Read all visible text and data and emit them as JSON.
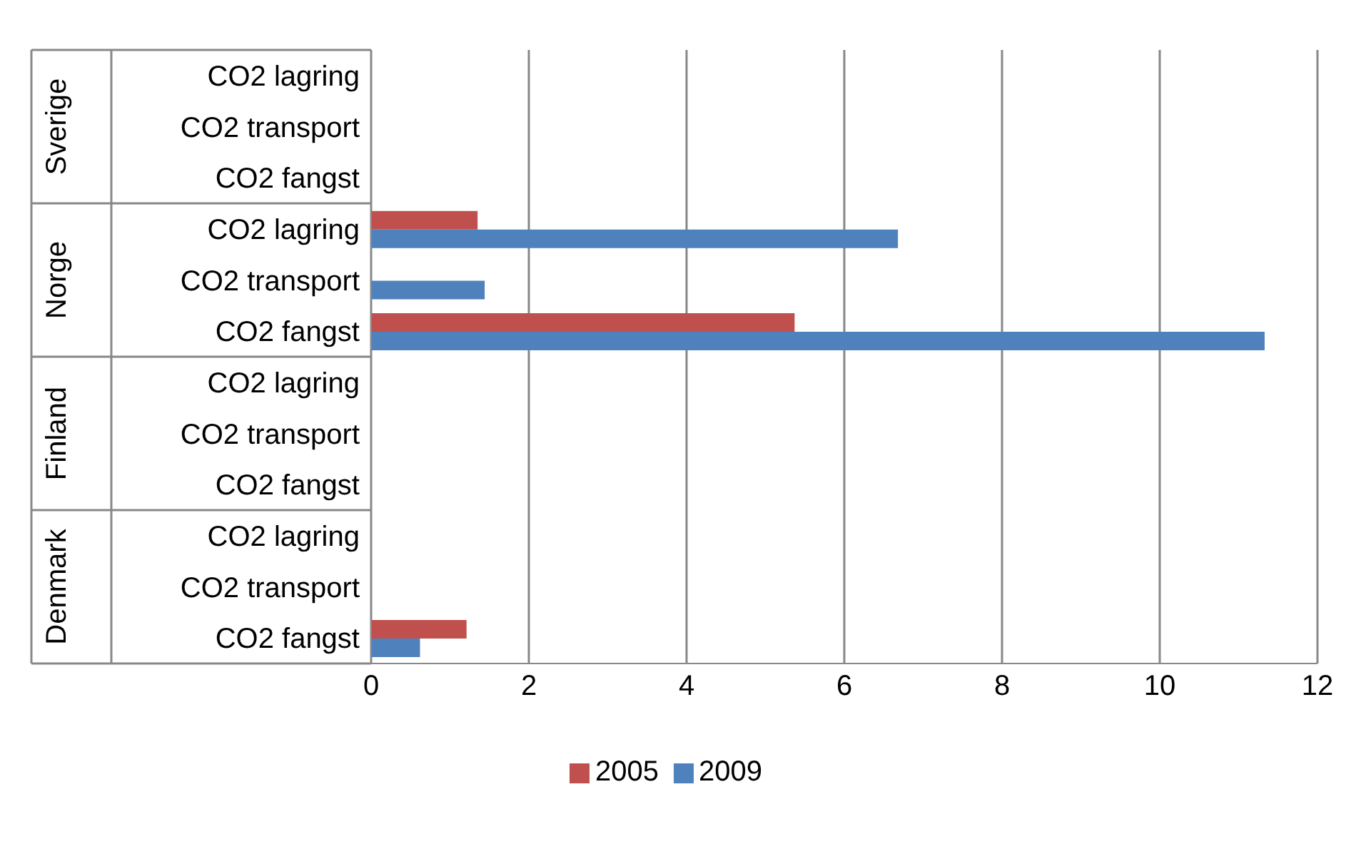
{
  "chart_data": {
    "type": "bar",
    "orientation": "horizontal",
    "categories": [
      "CO2 lagring",
      "CO2 transport",
      "CO2 fangst",
      "CO2 lagring",
      "CO2 transport",
      "CO2 fangst",
      "CO2 lagring",
      "CO2 transport",
      "CO2 fangst",
      "CO2 lagring",
      "CO2 transport",
      "CO2 fangst"
    ],
    "series": [
      {
        "name": "2005",
        "color": "#c0504d",
        "values": [
          null,
          null,
          null,
          1.35,
          null,
          5.37,
          null,
          null,
          null,
          null,
          null,
          1.21
        ]
      },
      {
        "name": "2009",
        "color": "#4f81bd",
        "values": [
          null,
          null,
          null,
          6.68,
          1.44,
          11.33,
          null,
          null,
          null,
          null,
          null,
          0.62
        ]
      }
    ],
    "annotations": [
      "Sverige",
      "Norge",
      "Finland",
      "Denmark"
    ],
    "xlim": [
      0,
      12
    ],
    "xticks": [
      0,
      2,
      4,
      6,
      8,
      10,
      12
    ],
    "grid": "x",
    "legend": "bottom"
  }
}
